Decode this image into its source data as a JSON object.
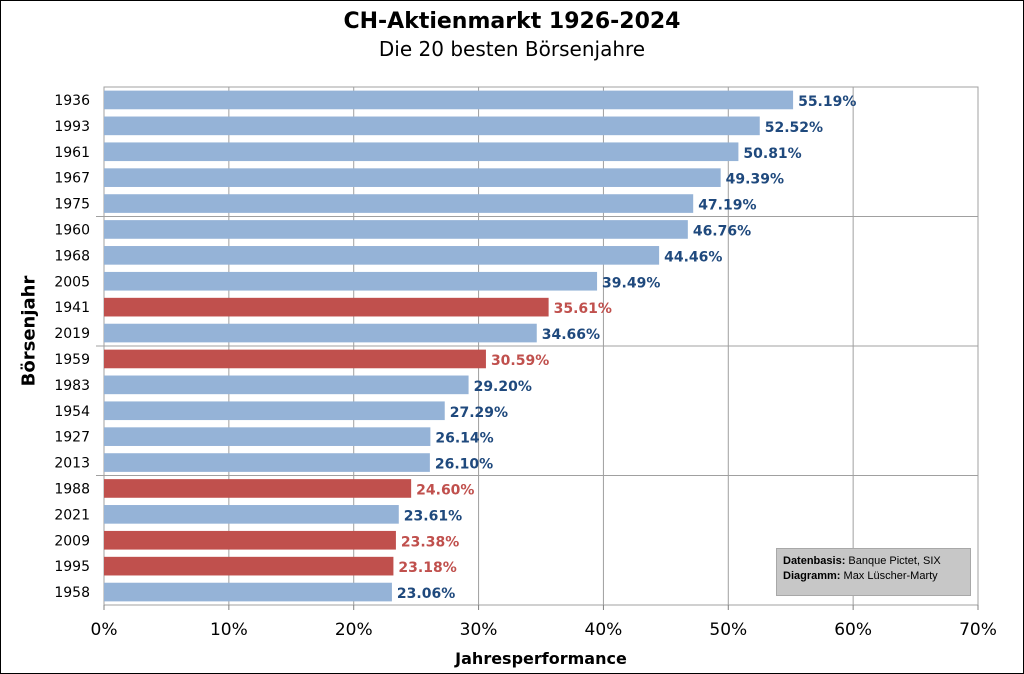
{
  "chart_data": {
    "type": "bar",
    "orientation": "horizontal",
    "title": "CH-Aktienmarkt  1926-2024",
    "subtitle": "Die 20 besten Börsenjahre",
    "xlabel": "Jahresperformance",
    "ylabel": "Börsenjahr",
    "xlim": [
      0,
      70
    ],
    "x_ticks": [
      "0%",
      "10%",
      "20%",
      "30%",
      "40%",
      "50%",
      "60%",
      "70%"
    ],
    "grid": true,
    "colors": {
      "blue": "#95b3d7",
      "red": "#c0504d",
      "blue_label": "#1f497d",
      "red_label": "#c0504d"
    },
    "categories": [
      "1936",
      "1993",
      "1961",
      "1967",
      "1975",
      "1960",
      "1968",
      "2005",
      "1941",
      "2019",
      "1959",
      "1983",
      "1954",
      "1927",
      "2013",
      "1988",
      "2021",
      "2009",
      "1995",
      "1958"
    ],
    "values": [
      55.19,
      52.52,
      50.81,
      49.39,
      47.19,
      46.76,
      44.46,
      39.49,
      35.61,
      34.66,
      30.59,
      29.2,
      27.29,
      26.14,
      26.1,
      24.6,
      23.61,
      23.38,
      23.18,
      23.06
    ],
    "labels": [
      "55.19%",
      "52.52%",
      "50.81%",
      "49.39%",
      "47.19%",
      "46.76%",
      "44.46%",
      "39.49%",
      "35.61%",
      "34.66%",
      "30.59%",
      "29.20%",
      "27.29%",
      "26.14%",
      "26.10%",
      "24.60%",
      "23.61%",
      "23.38%",
      "23.18%",
      "23.06%"
    ],
    "bar_colors": [
      "blue",
      "blue",
      "blue",
      "blue",
      "blue",
      "blue",
      "blue",
      "blue",
      "red",
      "blue",
      "red",
      "blue",
      "blue",
      "blue",
      "blue",
      "red",
      "blue",
      "red",
      "red",
      "blue"
    ]
  },
  "source": {
    "line1_label": "Datenbasis:",
    "line1_value": " Banque Pictet, SIX",
    "line2_label": "Diagramm:",
    "line2_value": " Max Lüscher-Marty"
  }
}
